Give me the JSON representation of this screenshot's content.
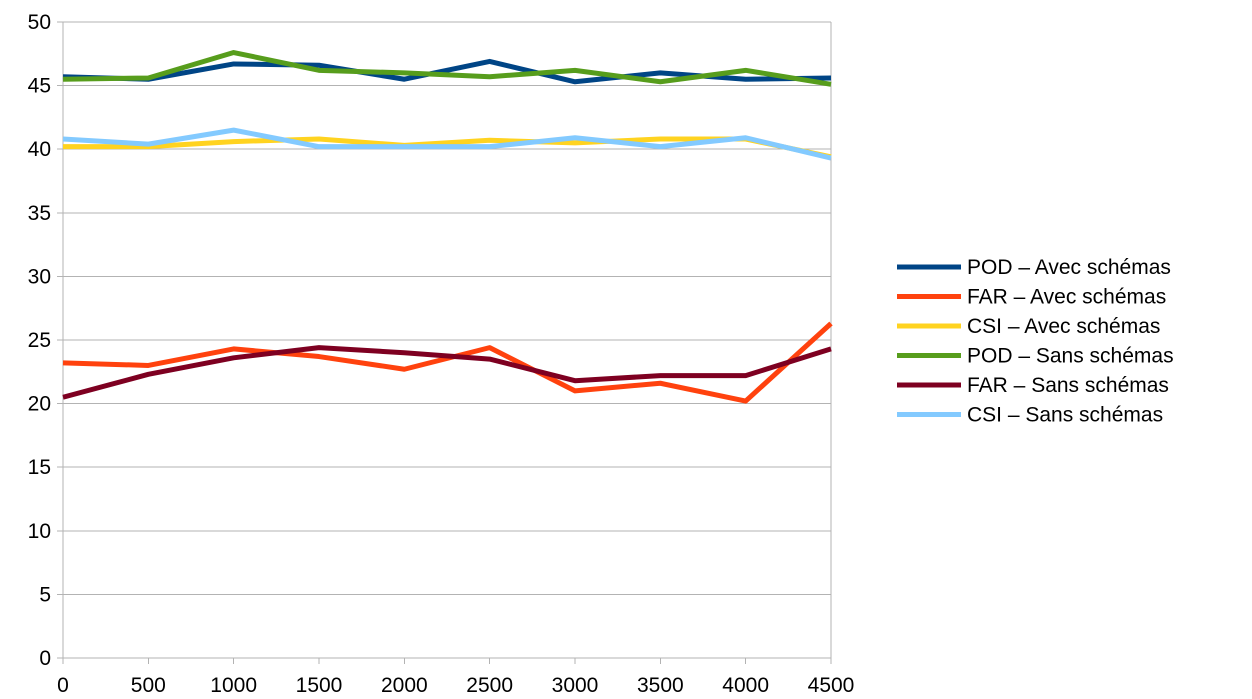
{
  "chart_data": {
    "type": "line",
    "x": [
      0,
      500,
      1000,
      1500,
      2000,
      2500,
      3000,
      3500,
      4000,
      4500
    ],
    "xlim": [
      0,
      4500
    ],
    "ylim": [
      0,
      50
    ],
    "x_ticks": [
      "0",
      "500",
      "1000",
      "1500",
      "2000",
      "2500",
      "3000",
      "3500",
      "4000",
      "4500"
    ],
    "y_ticks": [
      "0",
      "5",
      "10",
      "15",
      "20",
      "25",
      "30",
      "35",
      "40",
      "45",
      "50"
    ],
    "grid": "horizontal",
    "legend_position": "right",
    "series": [
      {
        "name": "POD – Avec schémas",
        "color": "#004586",
        "values": [
          45.7,
          45.5,
          46.7,
          46.6,
          45.5,
          46.9,
          45.3,
          46.0,
          45.5,
          45.6
        ]
      },
      {
        "name": "FAR – Avec schémas",
        "color": "#ff420e",
        "values": [
          23.2,
          23.0,
          24.3,
          23.7,
          22.7,
          24.4,
          21.0,
          21.6,
          20.2,
          26.3
        ]
      },
      {
        "name": "CSI – Avec schémas",
        "color": "#ffd320",
        "values": [
          40.2,
          40.2,
          40.6,
          40.8,
          40.3,
          40.7,
          40.5,
          40.8,
          40.8,
          39.4
        ]
      },
      {
        "name": "POD – Sans schémas",
        "color": "#579d1c",
        "values": [
          45.5,
          45.6,
          47.6,
          46.2,
          46.0,
          45.7,
          46.2,
          45.3,
          46.2,
          45.1
        ]
      },
      {
        "name": "FAR – Sans schémas",
        "color": "#7e0021",
        "values": [
          20.5,
          22.3,
          23.6,
          24.4,
          24.0,
          23.5,
          21.8,
          22.2,
          22.2,
          24.3
        ]
      },
      {
        "name": "CSI – Sans schémas",
        "color": "#83caff",
        "values": [
          40.8,
          40.4,
          41.5,
          40.2,
          40.2,
          40.2,
          40.9,
          40.2,
          40.9,
          39.3
        ]
      }
    ]
  }
}
